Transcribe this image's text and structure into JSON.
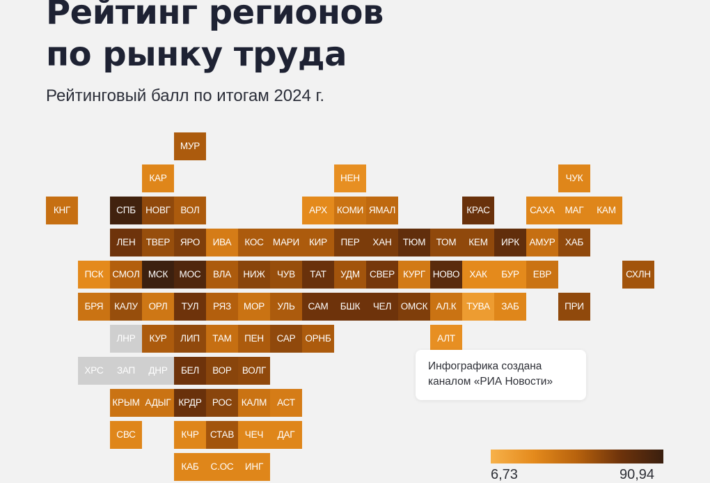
{
  "header": {
    "title_line1": "Рейтинг регионов",
    "title_line2": "по рынку труда",
    "subtitle": "Рейтинговый балл по итогам 2024 г."
  },
  "note": {
    "line1": "Инфографика создана",
    "line2": "каналом «РИА Новости»"
  },
  "legend": {
    "min_label": "6,73",
    "max_label": "90,94",
    "gradient_colors": [
      "#f7b14a",
      "#e48a1c",
      "#b7620d",
      "#6e330b",
      "#3a1f0f"
    ]
  },
  "chart_data": {
    "type": "heatmap",
    "title": "Рейтинг регионов по рынку труда",
    "subtitle": "Рейтинговый балл по итогам 2024 г.",
    "value_range": [
      6.73,
      90.94
    ],
    "no_data_color": "#cfcfcf",
    "cells": [
      {
        "label": "МУР",
        "row": 0,
        "col": 4,
        "value": 52
      },
      {
        "label": "КАР",
        "row": 1,
        "col": 3,
        "value": 30
      },
      {
        "label": "НЕН",
        "row": 1,
        "col": 9,
        "value": 25
      },
      {
        "label": "ЧУК",
        "row": 1,
        "col": 16,
        "value": 30
      },
      {
        "label": "КНГ",
        "row": 2,
        "col": 0,
        "value": 42
      },
      {
        "label": "СПБ",
        "row": 2,
        "col": 2,
        "value": 88
      },
      {
        "label": "НОВГ",
        "row": 2,
        "col": 3,
        "value": 60
      },
      {
        "label": "ВОЛ",
        "row": 2,
        "col": 4,
        "value": 52
      },
      {
        "label": "АРХ",
        "row": 2,
        "col": 8,
        "value": 28
      },
      {
        "label": "КОМИ",
        "row": 2,
        "col": 9,
        "value": 40
      },
      {
        "label": "ЯМАЛ",
        "row": 2,
        "col": 10,
        "value": 45
      },
      {
        "label": "КРАС",
        "row": 2,
        "col": 13,
        "value": 72
      },
      {
        "label": "САХА",
        "row": 2,
        "col": 15,
        "value": 30
      },
      {
        "label": "МАГ",
        "row": 2,
        "col": 16,
        "value": 30
      },
      {
        "label": "КАМ",
        "row": 2,
        "col": 17,
        "value": 30
      },
      {
        "label": "ЛЕН",
        "row": 3,
        "col": 2,
        "value": 70
      },
      {
        "label": "ТВЕР",
        "row": 3,
        "col": 3,
        "value": 58
      },
      {
        "label": "ЯРО",
        "row": 3,
        "col": 4,
        "value": 65
      },
      {
        "label": "ИВА",
        "row": 3,
        "col": 5,
        "value": 35
      },
      {
        "label": "КОС",
        "row": 3,
        "col": 6,
        "value": 52
      },
      {
        "label": "МАРИ",
        "row": 3,
        "col": 7,
        "value": 52
      },
      {
        "label": "КИР",
        "row": 3,
        "col": 8,
        "value": 52
      },
      {
        "label": "ПЕР",
        "row": 3,
        "col": 9,
        "value": 66
      },
      {
        "label": "ХАН",
        "row": 3,
        "col": 10,
        "value": 66
      },
      {
        "label": "ТЮМ",
        "row": 3,
        "col": 11,
        "value": 75
      },
      {
        "label": "ТОМ",
        "row": 3,
        "col": 12,
        "value": 60
      },
      {
        "label": "КЕМ",
        "row": 3,
        "col": 13,
        "value": 60
      },
      {
        "label": "ИРК",
        "row": 3,
        "col": 14,
        "value": 75
      },
      {
        "label": "АМУР",
        "row": 3,
        "col": 15,
        "value": 42
      },
      {
        "label": "ХАБ",
        "row": 3,
        "col": 16,
        "value": 60
      },
      {
        "label": "ПСК",
        "row": 4,
        "col": 1,
        "value": 28
      },
      {
        "label": "СМОЛ",
        "row": 4,
        "col": 2,
        "value": 50
      },
      {
        "label": "МСК",
        "row": 4,
        "col": 3,
        "value": 90
      },
      {
        "label": "МОС",
        "row": 4,
        "col": 4,
        "value": 82
      },
      {
        "label": "ВЛА",
        "row": 4,
        "col": 5,
        "value": 52
      },
      {
        "label": "НИЖ",
        "row": 4,
        "col": 6,
        "value": 62
      },
      {
        "label": "ЧУВ",
        "row": 4,
        "col": 7,
        "value": 58
      },
      {
        "label": "ТАТ",
        "row": 4,
        "col": 8,
        "value": 72
      },
      {
        "label": "УДМ",
        "row": 4,
        "col": 9,
        "value": 55
      },
      {
        "label": "СВЕР",
        "row": 4,
        "col": 10,
        "value": 68
      },
      {
        "label": "КУРГ",
        "row": 4,
        "col": 11,
        "value": 36
      },
      {
        "label": "НОВО",
        "row": 4,
        "col": 12,
        "value": 78
      },
      {
        "label": "ХАК",
        "row": 4,
        "col": 13,
        "value": 28
      },
      {
        "label": "БУР",
        "row": 4,
        "col": 14,
        "value": 28
      },
      {
        "label": "ЕВР",
        "row": 4,
        "col": 15,
        "value": 40
      },
      {
        "label": "СХЛН",
        "row": 4,
        "col": 18,
        "value": 55
      },
      {
        "label": "БРЯ",
        "row": 5,
        "col": 1,
        "value": 40
      },
      {
        "label": "КАЛУ",
        "row": 5,
        "col": 2,
        "value": 58
      },
      {
        "label": "ОРЛ",
        "row": 5,
        "col": 3,
        "value": 38
      },
      {
        "label": "ТУЛ",
        "row": 5,
        "col": 4,
        "value": 70
      },
      {
        "label": "РЯЗ",
        "row": 5,
        "col": 5,
        "value": 50
      },
      {
        "label": "МОР",
        "row": 5,
        "col": 6,
        "value": 40
      },
      {
        "label": "УЛЬ",
        "row": 5,
        "col": 7,
        "value": 52
      },
      {
        "label": "САМ",
        "row": 5,
        "col": 8,
        "value": 70
      },
      {
        "label": "БШК",
        "row": 5,
        "col": 9,
        "value": 70
      },
      {
        "label": "ЧЕЛ",
        "row": 5,
        "col": 10,
        "value": 70
      },
      {
        "label": "ОМСК",
        "row": 5,
        "col": 11,
        "value": 65
      },
      {
        "label": "АЛ.К",
        "row": 5,
        "col": 12,
        "value": 40
      },
      {
        "label": "ТУВА",
        "row": 5,
        "col": 13,
        "value": 18
      },
      {
        "label": "ЗАБ",
        "row": 5,
        "col": 14,
        "value": 30
      },
      {
        "label": "ПРИ",
        "row": 5,
        "col": 16,
        "value": 60
      },
      {
        "label": "ЛНР",
        "row": 6,
        "col": 2,
        "value": null
      },
      {
        "label": "КУР",
        "row": 6,
        "col": 3,
        "value": 52
      },
      {
        "label": "ЛИП",
        "row": 6,
        "col": 4,
        "value": 60
      },
      {
        "label": "ТАМ",
        "row": 6,
        "col": 5,
        "value": 42
      },
      {
        "label": "ПЕН",
        "row": 6,
        "col": 6,
        "value": 52
      },
      {
        "label": "САР",
        "row": 6,
        "col": 7,
        "value": 60
      },
      {
        "label": "ОРНБ",
        "row": 6,
        "col": 8,
        "value": 52
      },
      {
        "label": "АЛТ",
        "row": 6,
        "col": 12,
        "value": 25
      },
      {
        "label": "ХРС",
        "row": 7,
        "col": 1,
        "value": null
      },
      {
        "label": "ЗАП",
        "row": 7,
        "col": 2,
        "value": null
      },
      {
        "label": "ДНР",
        "row": 7,
        "col": 3,
        "value": null
      },
      {
        "label": "БЕЛ",
        "row": 7,
        "col": 4,
        "value": 70
      },
      {
        "label": "ВОР",
        "row": 7,
        "col": 5,
        "value": 62
      },
      {
        "label": "ВОЛГ",
        "row": 7,
        "col": 6,
        "value": 60
      },
      {
        "label": "КРЫМ",
        "row": 8,
        "col": 2,
        "value": 40
      },
      {
        "label": "АДЫГ",
        "row": 8,
        "col": 3,
        "value": 40
      },
      {
        "label": "КРДР",
        "row": 8,
        "col": 4,
        "value": 72
      },
      {
        "label": "РОС",
        "row": 8,
        "col": 5,
        "value": 62
      },
      {
        "label": "КАЛМ",
        "row": 8,
        "col": 6,
        "value": 40
      },
      {
        "label": "АСТ",
        "row": 8,
        "col": 7,
        "value": 35
      },
      {
        "label": "СВС",
        "row": 9,
        "col": 2,
        "value": 30
      },
      {
        "label": "КЧР",
        "row": 9,
        "col": 4,
        "value": 30
      },
      {
        "label": "СТАВ",
        "row": 9,
        "col": 5,
        "value": 55
      },
      {
        "label": "ЧЕЧ",
        "row": 9,
        "col": 6,
        "value": 30
      },
      {
        "label": "ДАГ",
        "row": 9,
        "col": 7,
        "value": 30
      },
      {
        "label": "КАБ",
        "row": 10,
        "col": 4,
        "value": 30
      },
      {
        "label": "С.ОС",
        "row": 10,
        "col": 5,
        "value": 30
      },
      {
        "label": "ИНГ",
        "row": 10,
        "col": 6,
        "value": 30
      }
    ]
  }
}
